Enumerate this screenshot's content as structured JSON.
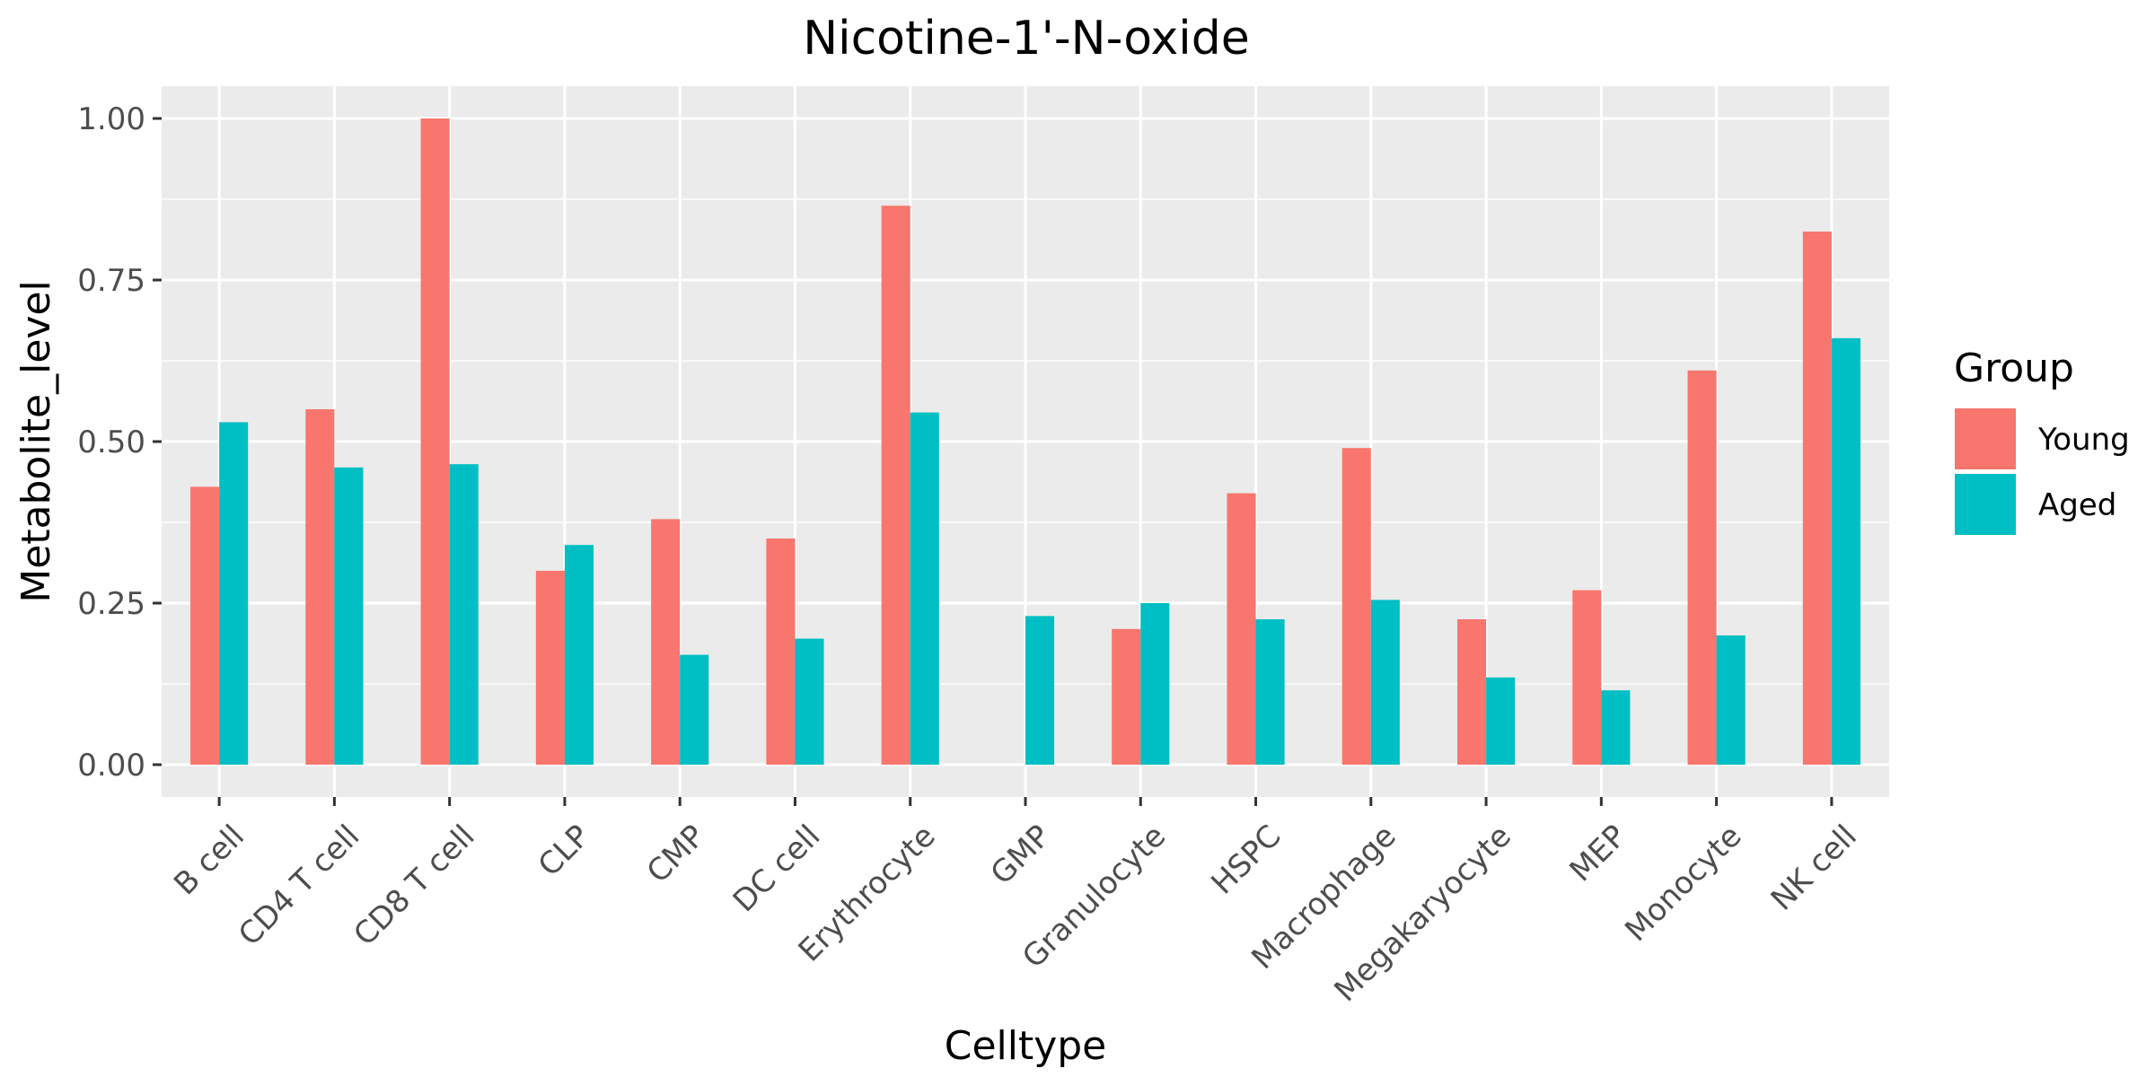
{
  "chart_data": {
    "type": "bar",
    "title": "Nicotine-1'-N-oxide",
    "xlabel": "Celltype",
    "ylabel": "Metabolite_level",
    "ylim": [
      -0.05,
      1.05
    ],
    "yticks": [
      "0.00",
      "0.25",
      "0.50",
      "0.75",
      "1.00"
    ],
    "ytick_values": [
      0,
      0.25,
      0.5,
      0.75,
      1.0
    ],
    "grid": true,
    "legend_position": "right",
    "legend_title": "Group",
    "categories": [
      "B cell",
      "CD4 T cell",
      "CD8 T cell",
      "CLP",
      "CMP",
      "DC cell",
      "Erythrocyte",
      "GMP",
      "Granulocyte",
      "HSPC",
      "Macrophage",
      "Megakaryocyte",
      "MEP",
      "Monocyte",
      "NK cell"
    ],
    "series": [
      {
        "name": "Young",
        "color": "#F8766D",
        "values": [
          0.43,
          0.55,
          1.0,
          0.3,
          0.38,
          0.35,
          0.865,
          null,
          0.21,
          0.42,
          0.49,
          0.225,
          0.27,
          0.61,
          0.825
        ]
      },
      {
        "name": "Aged",
        "color": "#00BFC4",
        "values": [
          0.53,
          0.46,
          0.465,
          0.34,
          0.17,
          0.195,
          0.545,
          0.23,
          0.25,
          0.225,
          0.255,
          0.135,
          0.115,
          0.2,
          0.66
        ]
      }
    ]
  }
}
